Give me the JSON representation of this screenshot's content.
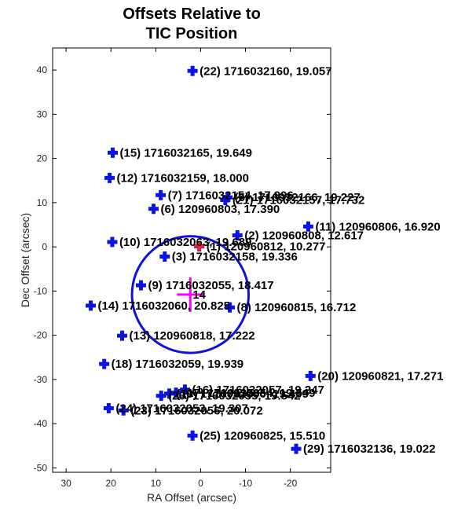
{
  "chart_data": {
    "type": "scatter",
    "title": [
      "Offsets Relative to",
      "TIC Position"
    ],
    "xlabel": "RA Offset (arcsec)",
    "ylabel": "Dec Offset (arcsec)",
    "xlim": [
      33,
      -29
    ],
    "ylim": [
      -51,
      45
    ],
    "xticks": [
      30,
      20,
      10,
      0,
      -10,
      -20
    ],
    "yticks": [
      40,
      30,
      20,
      10,
      0,
      -10,
      -20,
      -30,
      -40,
      -50
    ],
    "grid": false,
    "points": [
      {
        "label": "(22) 1716032160, 19.057",
        "x": 1.8,
        "y": 39.8
      },
      {
        "label": "(15) 1716032165, 19.649",
        "x": 19.6,
        "y": 21.3
      },
      {
        "label": "(12) 1716032159, 18.000",
        "x": 20.3,
        "y": 15.6
      },
      {
        "label": "(7) 1716032154, 17.996",
        "x": 8.9,
        "y": 11.7
      },
      {
        "label": "(21) 1716032157, 17.732",
        "x": -5.5,
        "y": 10.6
      },
      {
        "label": "(5) 1716032166, 19.227",
        "x": -6.0,
        "y": 11.2
      },
      {
        "label": "(6) 120960803, 17.390",
        "x": 10.5,
        "y": 8.6
      },
      {
        "label": "(11) 120960806, 16.920",
        "x": -24.0,
        "y": 4.6
      },
      {
        "label": "(2) 120960808, 12.617",
        "x": -8.2,
        "y": 2.6
      },
      {
        "label": "(10) 1716032063, 19.689",
        "x": 19.7,
        "y": 1.1
      },
      {
        "label": "(1) 120960812, 10.277",
        "x": 0.3,
        "y": 0.1
      },
      {
        "label": "(3) 1716032158, 19.336",
        "x": 8.0,
        "y": -2.2
      },
      {
        "label": "(9) 1716032055, 18.417",
        "x": 13.3,
        "y": -8.7
      },
      {
        "label": "(14) 1716032060, 20.825",
        "x": 24.5,
        "y": -13.3
      },
      {
        "label": "(8) 120960815, 16.712",
        "x": -6.5,
        "y": -13.7
      },
      {
        "label": "(13) 120960818, 17.222",
        "x": 17.5,
        "y": -20.1
      },
      {
        "label": "(18) 1716032059, 19.939",
        "x": 21.5,
        "y": -26.5
      },
      {
        "label": "(20) 120960821, 17.271",
        "x": -24.5,
        "y": -29.2
      },
      {
        "label": "(16) 1716032057, 19.247",
        "x": 3.5,
        "y": -32.3
      },
      {
        "label": "(17) 1716032054, 19.549",
        "x": 5.5,
        "y": -33.0
      },
      {
        "label": "(19) 1716032056, 19.409",
        "x": 7.0,
        "y": -33.2
      },
      {
        "label": "(26) 1716032055, 19.542",
        "x": 8.8,
        "y": -33.7
      },
      {
        "label": "(24) 1716032053, 19.307",
        "x": 20.5,
        "y": -36.5
      },
      {
        "label": "(23) 1716032056, 20.072",
        "x": 17.2,
        "y": -37.0
      },
      {
        "label": "(25) 120960825, 15.510",
        "x": 1.8,
        "y": -42.7
      },
      {
        "label": "(29) 1716032136, 19.022",
        "x": -21.3,
        "y": -45.7
      }
    ],
    "target": {
      "label": "(1) 120960812, 10.277",
      "x": 0.3,
      "y": 0.1,
      "color": "#ff2020"
    },
    "centroid": {
      "label": "14",
      "x": 2.3,
      "y": -10.8,
      "color": "#ff00ff"
    },
    "circle": {
      "cx": 2.3,
      "cy": -10.8,
      "r": 13.0,
      "color": "#1010d8"
    },
    "point_color": "#0a14e6"
  }
}
